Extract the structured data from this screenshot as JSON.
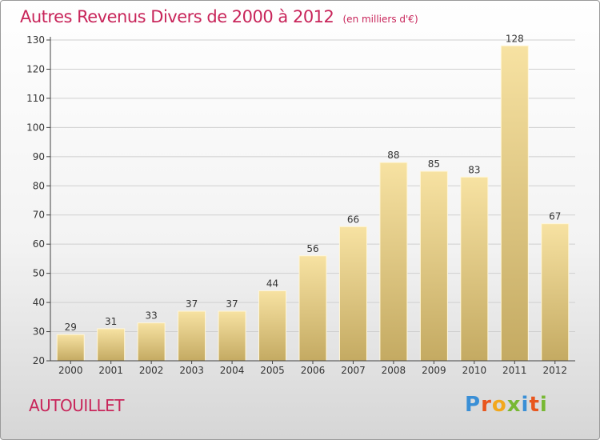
{
  "title": {
    "main": "Autres Revenus Divers de 2000 à 2012",
    "unit": "(en milliers d'€)"
  },
  "commune": "AUTOUILLET",
  "logo": {
    "text": "Proxiti",
    "letter_colors": [
      "#3a8fd6",
      "#e8561e",
      "#f2a81d",
      "#77b833",
      "#3a8fd6",
      "#e8561e",
      "#77b833"
    ]
  },
  "colors": {
    "bar_top": "#f7e2a2",
    "bar_bottom": "#c4aa62",
    "bar_stroke": "#fff6d8",
    "axis": "#444444",
    "grid": "#cfcfcf",
    "text": "#333333",
    "title": "#c8255a"
  },
  "chart_data": {
    "type": "bar",
    "title": "Autres Revenus Divers de 2000 à 2012",
    "xlabel": "",
    "ylabel": "",
    "categories": [
      "2000",
      "2001",
      "2002",
      "2003",
      "2004",
      "2005",
      "2006",
      "2007",
      "2008",
      "2009",
      "2010",
      "2011",
      "2012"
    ],
    "values": [
      29,
      31,
      33,
      37,
      37,
      44,
      56,
      66,
      88,
      85,
      83,
      128,
      67
    ],
    "ylim": [
      20,
      130
    ],
    "yticks": [
      20,
      30,
      40,
      50,
      60,
      70,
      80,
      90,
      100,
      110,
      120,
      130
    ],
    "grid": true,
    "data_labels": true
  }
}
